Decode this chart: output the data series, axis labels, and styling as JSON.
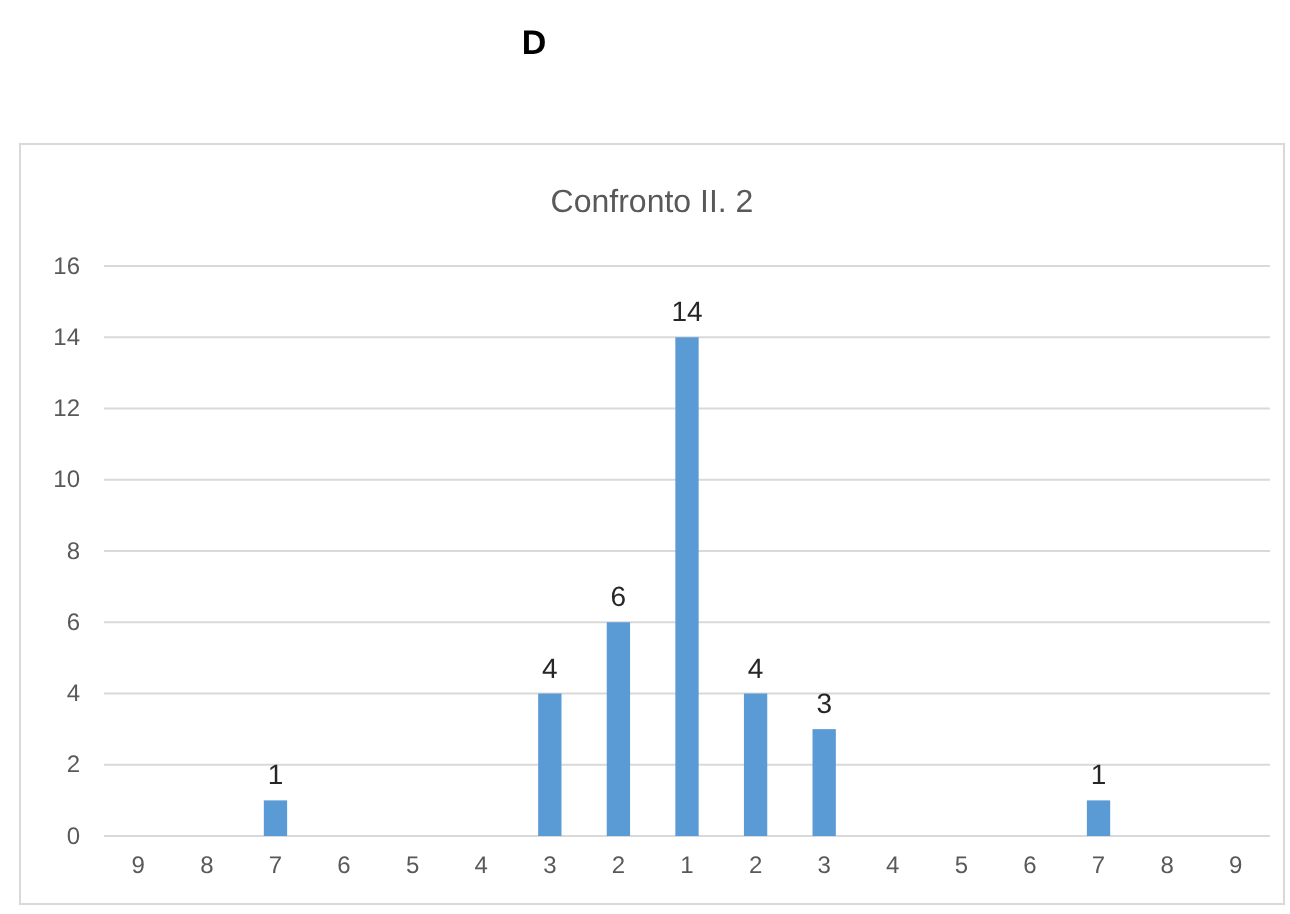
{
  "chart_data": {
    "type": "bar",
    "title": "Confronto II. 2",
    "annotations": [
      "D"
    ],
    "categories": [
      "9",
      "8",
      "7",
      "6",
      "5",
      "4",
      "3",
      "2",
      "1",
      "2",
      "3",
      "4",
      "5",
      "6",
      "7",
      "8",
      "9"
    ],
    "values": [
      0,
      0,
      1,
      0,
      0,
      0,
      4,
      6,
      14,
      4,
      3,
      0,
      0,
      0,
      1,
      0,
      0
    ],
    "value_labels": [
      null,
      null,
      "1",
      null,
      null,
      null,
      "4",
      "6",
      "14",
      "4",
      "3",
      null,
      null,
      null,
      "1",
      null,
      null
    ],
    "color": "#5b9bd5",
    "ylim": [
      0,
      16
    ],
    "yticks": [
      0,
      2,
      4,
      6,
      8,
      10,
      12,
      14,
      16
    ],
    "grid": "y"
  }
}
